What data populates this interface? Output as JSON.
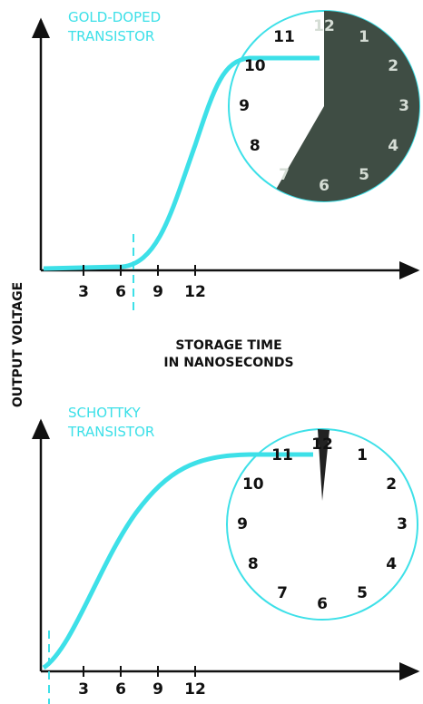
{
  "y_axis_label": "OUTPUT VOLTAGE",
  "x_axis_label": [
    "STORAGE TIME",
    "IN NANOSECONDS"
  ],
  "panels": [
    {
      "label": [
        "GOLD-DOPED",
        "TRANSISTOR"
      ],
      "x_ticks": [
        "3",
        "6",
        "9",
        "12"
      ],
      "clock_numerals": [
        "1",
        "2",
        "3",
        "4",
        "5",
        "6",
        "7",
        "8",
        "9",
        "10",
        "11",
        "12"
      ]
    },
    {
      "label": [
        "SCHOTTKY",
        "TRANSISTOR"
      ],
      "x_ticks": [
        "3",
        "6",
        "9",
        "12"
      ],
      "clock_numerals": [
        "1",
        "2",
        "3",
        "4",
        "5",
        "6",
        "7",
        "8",
        "9",
        "10",
        "11",
        "12"
      ]
    }
  ]
}
